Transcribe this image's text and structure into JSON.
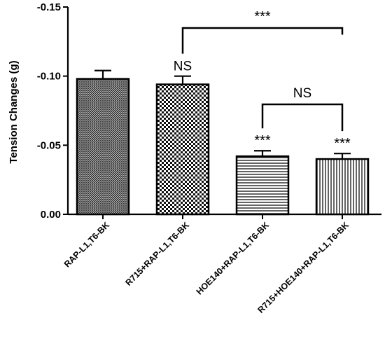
{
  "chart_data": {
    "type": "bar",
    "title": "",
    "xlabel": "",
    "ylabel": "Tension Changes (g)",
    "ylim": [
      0,
      -0.15
    ],
    "inverted_y": true,
    "yticks": [
      "0.00",
      "-0.05",
      "-0.10",
      "-0.15"
    ],
    "ytick_values": [
      0,
      -0.05,
      -0.1,
      -0.15
    ],
    "categories": [
      "RAP-L1,T6-BK",
      "R715+RAP-L1,T6-BK",
      "HOE140+RAP-L1,T6-BK",
      "R715+HOE140+RAP-L1,T6-BK"
    ],
    "values": [
      -0.098,
      -0.094,
      -0.042,
      -0.04
    ],
    "errors": [
      0.006,
      0.006,
      0.004,
      0.004
    ],
    "patterns": [
      "fine-crosshatch",
      "checker",
      "horizontal-lines",
      "vertical-lines"
    ],
    "bar_annotations": [
      "",
      "NS",
      "***",
      "***"
    ],
    "comparisons": [
      {
        "from": 1,
        "to": 3,
        "label": "***"
      },
      {
        "from": 2,
        "to": 3,
        "label": "NS"
      }
    ],
    "grid": false,
    "legend": "none"
  }
}
